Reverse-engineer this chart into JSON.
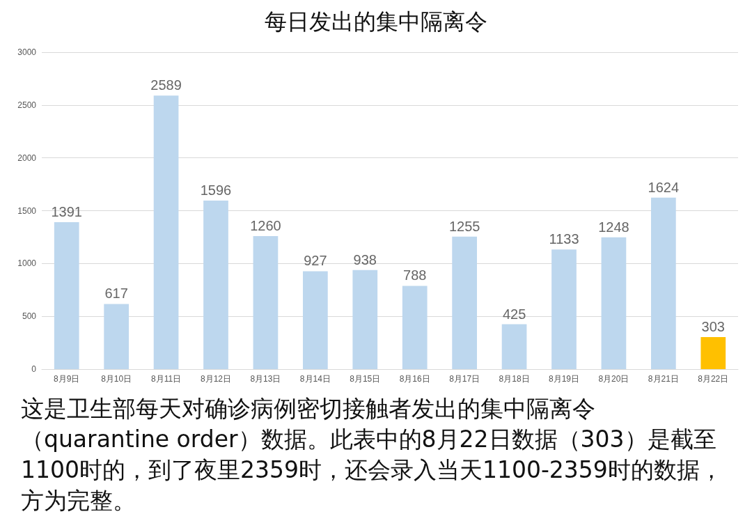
{
  "chart_data": {
    "type": "bar",
    "title": "每日发出的集中隔离令",
    "categories": [
      "8月9日",
      "8月10日",
      "8月11日",
      "8月12日",
      "8月13日",
      "8月14日",
      "8月15日",
      "8月16日",
      "8月17日",
      "8月18日",
      "8月19日",
      "8月20日",
      "8月21日",
      "8月22日"
    ],
    "values": [
      1391,
      617,
      2589,
      1596,
      1260,
      927,
      938,
      788,
      1255,
      425,
      1133,
      1248,
      1624,
      303
    ],
    "colors": [
      "#bdd7ee",
      "#bdd7ee",
      "#bdd7ee",
      "#bdd7ee",
      "#bdd7ee",
      "#bdd7ee",
      "#bdd7ee",
      "#bdd7ee",
      "#bdd7ee",
      "#bdd7ee",
      "#bdd7ee",
      "#bdd7ee",
      "#bdd7ee",
      "#ffc000"
    ],
    "ylim": [
      0,
      3000
    ],
    "yticks": [
      0,
      500,
      1000,
      1500,
      2000,
      2500,
      3000
    ],
    "grid": "y",
    "data_labels": true,
    "annotations": [
      "这是卫生部每天对确诊病例密切接触者发出的集中隔离令（quarantine order）数据。此表中的8月22日数据（303）是截至1100时的，到了夜里2359时，还会录入当天1100-2359时的数据，方为完整。"
    ]
  }
}
